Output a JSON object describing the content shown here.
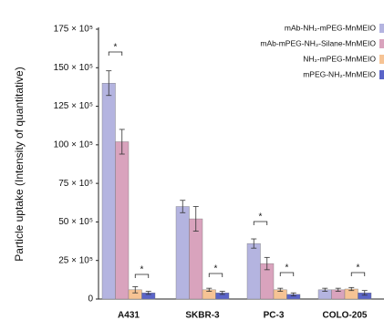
{
  "chart_data": {
    "type": "bar",
    "y_label": "Particle uptake (Intensity of quantitative)",
    "categories": [
      "A431",
      "SKBR-3",
      "PC-3",
      "COLO-205"
    ],
    "series": [
      {
        "name": "mAb-NH₂-mPEG-MnMEIO",
        "color": "#b4b4e0",
        "values": [
          14000000,
          6000000,
          3600000,
          600000
        ],
        "errors": [
          800000,
          400000,
          300000,
          100000
        ]
      },
      {
        "name": "mAb-mPEG-NH₂-Silane-MnMEIO",
        "color": "#d9a3bd",
        "values": [
          10200000,
          5200000,
          2300000,
          600000
        ],
        "errors": [
          800000,
          800000,
          400000,
          100000
        ]
      },
      {
        "name": "NH₂-mPEG-MnMEIO",
        "color": "#f6c394",
        "values": [
          600000,
          600000,
          600000,
          650000
        ],
        "errors": [
          200000,
          100000,
          100000,
          100000
        ]
      },
      {
        "name": "mPEG-NH₂-MnMEIO",
        "color": "#5a64c8",
        "values": [
          400000,
          400000,
          300000,
          400000
        ],
        "errors": [
          100000,
          100000,
          100000,
          150000
        ]
      }
    ],
    "annotations": [
      "*",
      "*",
      "*",
      "*",
      "*",
      "*"
    ],
    "ylim": [
      0,
      17500000
    ],
    "yticks": [
      0,
      {
        "value": 2500000,
        "label": "25 × 10⁵"
      },
      {
        "value": 5000000,
        "label": "50 × 10⁵"
      },
      {
        "value": 7500000,
        "label": "75 × 10⁵"
      },
      {
        "value": 10000000,
        "label": "100 × 10⁵"
      },
      {
        "value": 12500000,
        "label": "125 × 10⁵"
      },
      {
        "value": 15000000,
        "label": "150 × 10⁵"
      },
      {
        "value": 17500000,
        "label": "175 × 10⁵"
      }
    ],
    "grid": false
  }
}
